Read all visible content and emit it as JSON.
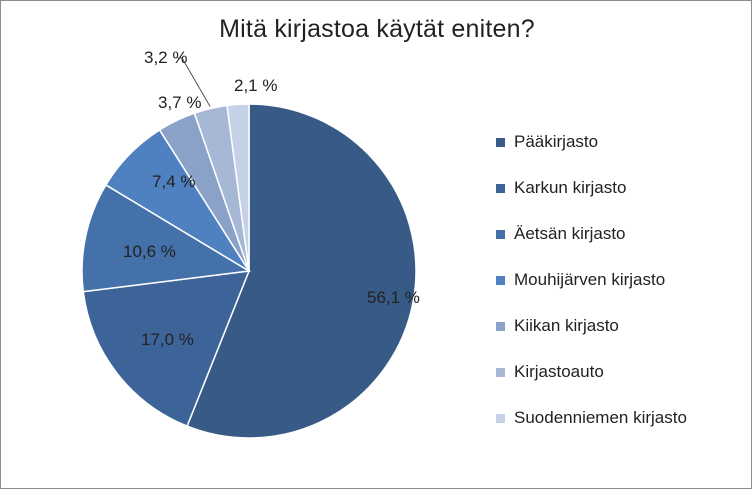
{
  "chart_data": {
    "type": "pie",
    "title": "Mitä kirjastoa käytät eniten?",
    "categories": [
      "Pääkirjasto",
      "Karkun kirjasto",
      "Äetsän kirjasto",
      "Mouhijärven kirjasto",
      "Kiikan kirjasto",
      "Kirjastoauto",
      "Suodenniemen kirjasto"
    ],
    "values": [
      56.1,
      17.0,
      10.6,
      7.4,
      3.7,
      3.2,
      2.1
    ],
    "data_labels": [
      "56,1 %",
      "17,0 %",
      "10,6 %",
      "7,4 %",
      "3,7 %",
      "3,2 %",
      "2,1 %"
    ],
    "colors": [
      "#375a87",
      "#3d6498",
      "#4571aa",
      "#4f80c0",
      "#8aa2c8",
      "#a6b8d6",
      "#c4d1e6"
    ],
    "legend_position": "right",
    "start_angle_deg": 0,
    "direction": "clockwise"
  }
}
